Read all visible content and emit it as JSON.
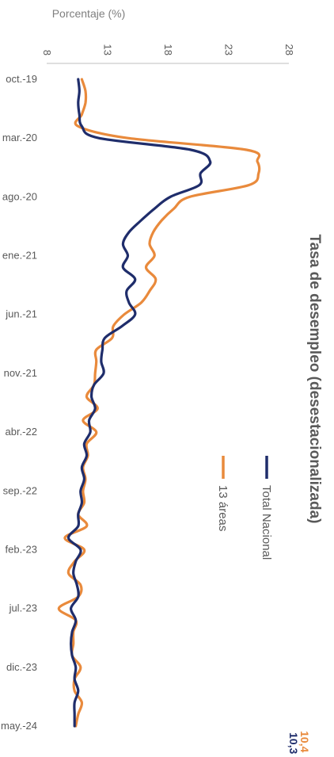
{
  "chart_data": {
    "type": "line",
    "title": "Tasa de desempleo (desestacionalizada)",
    "ylabel": "Porcentaje (%)",
    "xlabel": "",
    "ylim": [
      8,
      28
    ],
    "yticks": [
      "8",
      "13",
      "18",
      "23",
      "28"
    ],
    "xticks": [
      "oct.-19",
      "mar.-20",
      "ago.-20",
      "ene.-21",
      "jun.-21",
      "nov.-21",
      "abr.-22",
      "sep.-22",
      "feb.-23",
      "jul.-23",
      "dic.-23",
      "may.-24"
    ],
    "x": [
      "oct.-19",
      "nov.-19",
      "dic.-19",
      "ene.-20",
      "feb.-20",
      "mar.-20",
      "abr.-20",
      "may.-20",
      "jun.-20",
      "jul.-20",
      "ago.-20",
      "sep.-20",
      "oct.-20",
      "nov.-20",
      "dic.-20",
      "ene.-21",
      "feb.-21",
      "mar.-21",
      "abr.-21",
      "may.-21",
      "jun.-21",
      "jul.-21",
      "ago.-21",
      "sep.-21",
      "oct.-21",
      "nov.-21",
      "dic.-21",
      "ene.-22",
      "feb.-22",
      "mar.-22",
      "abr.-22",
      "may.-22",
      "jun.-22",
      "jul.-22",
      "ago.-22",
      "sep.-22",
      "oct.-22",
      "nov.-22",
      "dic.-22",
      "ene.-23",
      "feb.-23",
      "mar.-23",
      "abr.-23",
      "may.-23",
      "jun.-23",
      "jul.-23",
      "ago.-23",
      "sep.-23",
      "oct.-23",
      "nov.-23",
      "dic.-23",
      "ene.-24",
      "feb.-24",
      "mar.-24",
      "abr.-24",
      "may.-24"
    ],
    "series": [
      {
        "name": "Total Nacional",
        "color": "#1f2d6b",
        "end_label": "10,3",
        "values": [
          10.6,
          10.7,
          10.6,
          10.7,
          10.9,
          12.3,
          19.9,
          21.5,
          20.7,
          20.6,
          18.2,
          16.9,
          15.8,
          14.8,
          14.3,
          14.7,
          14.3,
          15.3,
          14.6,
          14.8,
          15.3,
          14.2,
          12.8,
          12.6,
          12.5,
          12.7,
          11.9,
          11.7,
          12.0,
          11.5,
          11.6,
          11.1,
          11.3,
          10.9,
          11.1,
          10.8,
          10.9,
          10.6,
          10.6,
          9.8,
          10.8,
          10.4,
          10.2,
          10.5,
          10.6,
          10.0,
          10.4,
          10.1,
          10.0,
          10.1,
          10.4,
          10.3,
          10.6,
          10.3,
          10.3,
          10.3
        ]
      },
      {
        "name": "13 áreas",
        "color": "#e98a3c",
        "end_label": "10,4",
        "values": [
          10.9,
          11.2,
          11.2,
          10.9,
          10.6,
          14.7,
          24.5,
          25.4,
          25.5,
          24.7,
          19.8,
          18.5,
          17.5,
          16.8,
          16.5,
          16.9,
          16.2,
          17.0,
          16.5,
          15.8,
          14.4,
          13.5,
          13.4,
          12.1,
          12.1,
          12.0,
          11.9,
          11.3,
          12.2,
          11.0,
          12.1,
          11.3,
          11.4,
          11.0,
          11.2,
          11.0,
          11.1,
          10.6,
          11.3,
          9.5,
          11.1,
          10.3,
          9.8,
          10.8,
          10.6,
          9.0,
          10.4,
          10.2,
          10.2,
          10.1,
          10.8,
          10.3,
          10.3,
          10.9,
          10.6,
          10.4
        ]
      }
    ],
    "legend": {
      "position": "top-left",
      "entries": [
        "Total Nacional",
        "13 áreas"
      ]
    },
    "grid": false
  }
}
